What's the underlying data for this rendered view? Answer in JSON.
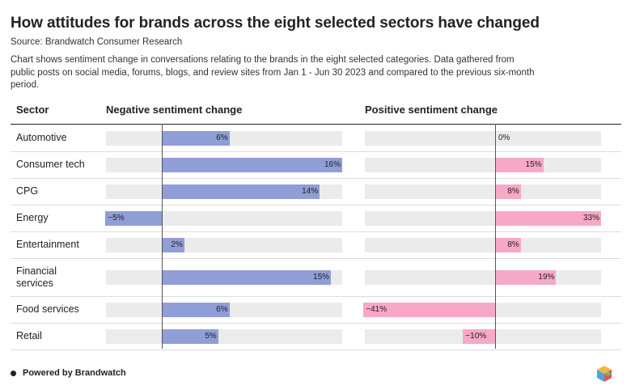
{
  "title": "How attitudes for brands across the eight selected sectors have changed",
  "source": "Source: Brandwatch Consumer Research",
  "description": "Chart shows sentiment change in conversations relating to the brands in the eight selected categories. Data gathered from public posts on social media, forums, blogs, and review sites from Jan 1 - Jun 30 2023 and compared to the previous six-month period.",
  "headers": {
    "sector": "Sector",
    "negative": "Negative sentiment change",
    "positive": "Positive sentiment change"
  },
  "footer": "Powered by Brandwatch",
  "colors": {
    "negative": "#8f9ed6",
    "positive": "#f7a8c6",
    "track": "#ebebeb"
  },
  "chart_data": {
    "type": "bar",
    "orientation": "horizontal",
    "title": "How attitudes for brands across the eight selected sectors have changed",
    "categories": [
      "Automotive",
      "Consumer tech",
      "CPG",
      "Energy",
      "Entertainment",
      "Financial services",
      "Food services",
      "Retail"
    ],
    "series": [
      {
        "name": "Negative sentiment change",
        "values": [
          6,
          16,
          14,
          -5,
          2,
          15,
          6,
          5
        ],
        "labels": [
          "6%",
          "16%",
          "14%",
          "−5%",
          "2%",
          "15%",
          "6%",
          "5%"
        ],
        "xlim": [
          -5,
          16
        ]
      },
      {
        "name": "Positive sentiment change",
        "values": [
          0,
          15,
          8,
          33,
          8,
          19,
          -41,
          -10
        ],
        "labels": [
          "0%",
          "15%",
          "8%",
          "33%",
          "8%",
          "19%",
          "−41%",
          "−10%"
        ],
        "xlim": [
          -41,
          33
        ]
      }
    ],
    "unit": "%"
  }
}
